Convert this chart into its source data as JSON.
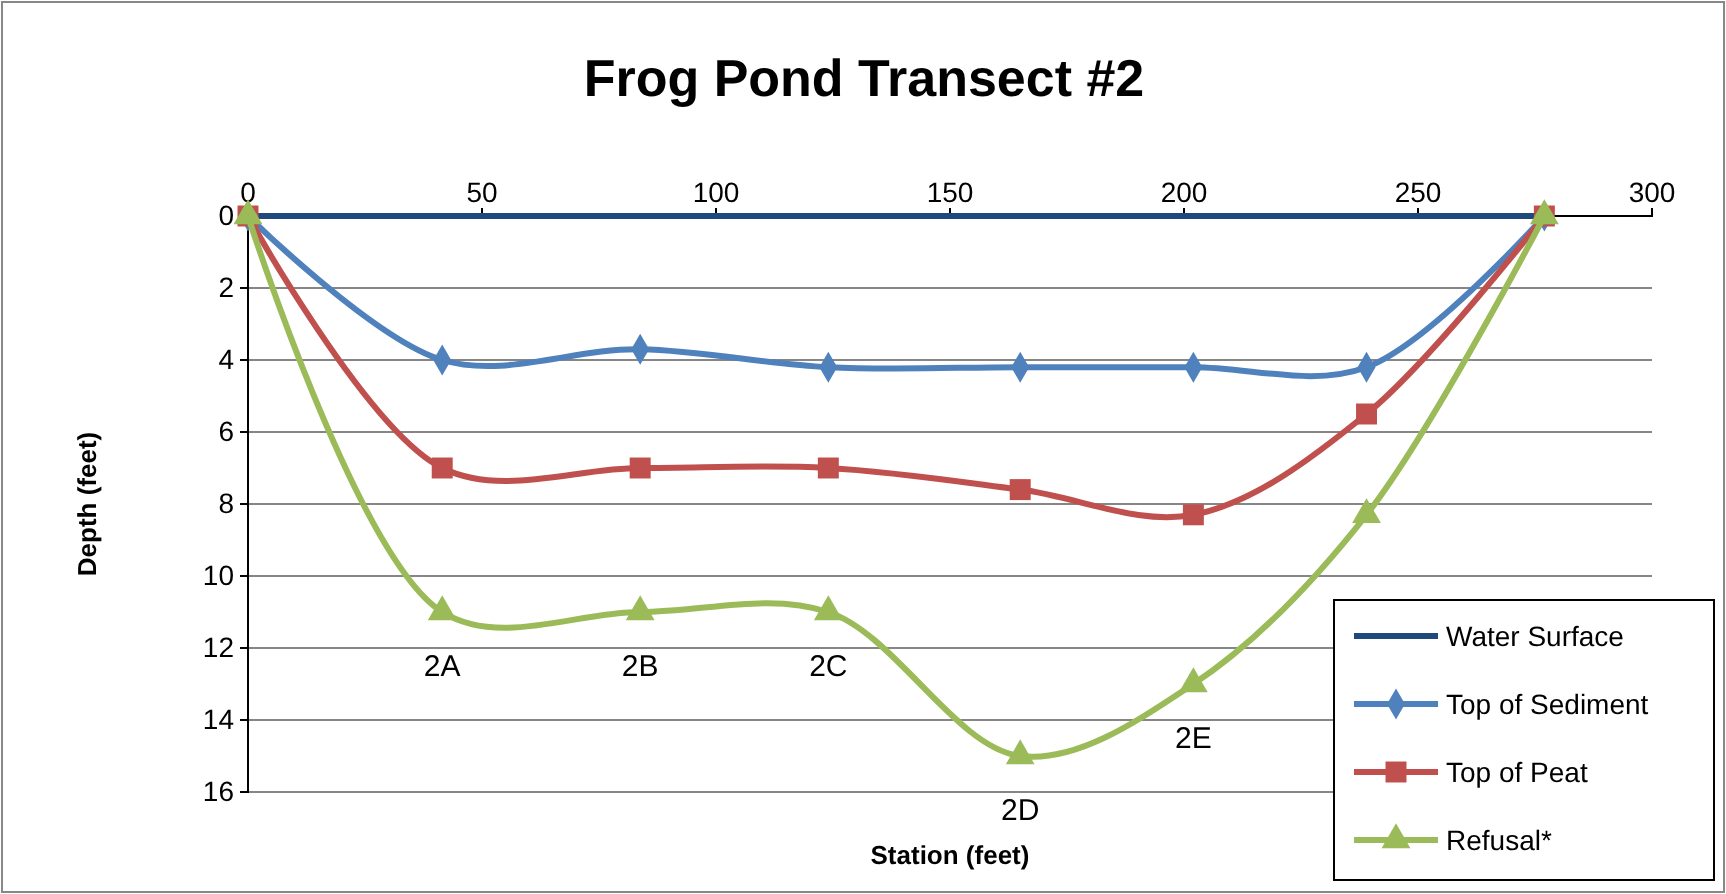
{
  "chart_data": {
    "type": "line",
    "title": "Frog Pond Transect #2",
    "xlabel": "Station (feet)",
    "ylabel": "Depth (feet)",
    "xlim": [
      0,
      300
    ],
    "xticks": [
      0,
      50,
      100,
      150,
      200,
      250,
      300
    ],
    "ylim": [
      16,
      0
    ],
    "yticks": [
      0,
      2,
      4,
      6,
      8,
      10,
      12,
      14,
      16
    ],
    "grid": "y",
    "legend": "bottom right",
    "x": [
      0,
      41.5,
      83.8,
      124,
      165,
      202,
      239,
      277
    ],
    "series": [
      {
        "name": "Water Surface",
        "color": "#1f497d",
        "marker": "none",
        "x": [
          0,
          277
        ],
        "values": [
          0,
          0
        ]
      },
      {
        "name": "Top of Sediment",
        "color": "#4f81bd",
        "marker": "diamond",
        "values": [
          0,
          4.0,
          3.7,
          4.2,
          4.2,
          4.2,
          4.2,
          0
        ]
      },
      {
        "name": "Top of Peat",
        "color": "#c0504d",
        "marker": "square",
        "values": [
          0,
          7.0,
          7.0,
          7.0,
          7.6,
          8.3,
          5.5,
          0
        ]
      },
      {
        "name": "Refusal*",
        "color": "#9bbb59",
        "marker": "triangle",
        "values": [
          0,
          11,
          11,
          11,
          15,
          13,
          8.3,
          0
        ]
      }
    ],
    "annotations": [
      {
        "text": "2A",
        "x": 41.5,
        "y": 11
      },
      {
        "text": "2B",
        "x": 83.8,
        "y": 11
      },
      {
        "text": "2C",
        "x": 124,
        "y": 11
      },
      {
        "text": "2D",
        "x": 165,
        "y": 15
      },
      {
        "text": "2E",
        "x": 202,
        "y": 13
      }
    ]
  }
}
